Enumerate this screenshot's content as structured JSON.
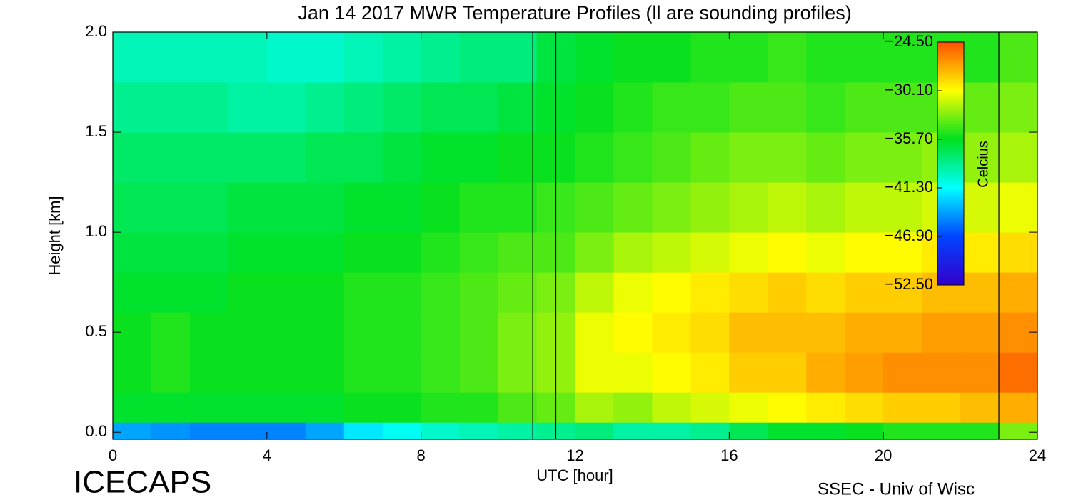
{
  "chart_data": {
    "type": "heatmap",
    "title": "Jan 14 2017 MWR Temperature Profiles (ll are sounding profiles)",
    "xlabel": "UTC [hour]",
    "ylabel": "Height [km]",
    "colorbar_label": "Celcius",
    "footer_left": "ICECAPS",
    "footer_right": "SSEC - Univ of Wisc",
    "xlim": [
      0,
      24
    ],
    "xticks": [
      0,
      4,
      8,
      12,
      16,
      20,
      24
    ],
    "ylim": [
      -0.035,
      2.0
    ],
    "yticks": [
      {
        "value": 0,
        "label": "0.0"
      },
      0.5,
      {
        "value": 1,
        "label": "1.0"
      },
      1.5,
      {
        "value": 2,
        "label": "2.0"
      }
    ],
    "clim": [
      -52.5,
      -24.5
    ],
    "cticks": [
      {
        "value": -24.5,
        "label": "−24.50"
      },
      {
        "value": -30.1,
        "label": "−30.10"
      },
      {
        "value": -35.7,
        "label": "−35.70"
      },
      {
        "value": -41.3,
        "label": "−41.30"
      },
      {
        "value": -46.9,
        "label": "−46.90"
      },
      {
        "value": -52.5,
        "label": "−52.50"
      }
    ],
    "colormap": [
      "#3300cc",
      "#0044ff",
      "#00ffff",
      "#00e020",
      "#ffff00",
      "#ff5000"
    ],
    "sounding_times": [
      10.9,
      11.5,
      23.0
    ],
    "x_bins": [
      0,
      1,
      2,
      3,
      4,
      5,
      6,
      7,
      8,
      9,
      10,
      11,
      12,
      13,
      14,
      15,
      16,
      17,
      18,
      19,
      20,
      21,
      22,
      23,
      24
    ],
    "y_bins": [
      -0.035,
      0.05,
      0.2,
      0.4,
      0.6,
      0.8,
      1.0,
      1.25,
      1.5,
      1.75,
      2.0
    ],
    "values": [
      [
        -44,
        -44.5,
        -45,
        -45,
        -45,
        -44,
        -42,
        -41,
        -40,
        -39.5,
        -39,
        -38.5,
        -38,
        -39,
        -39,
        -38.5,
        -37,
        -36,
        -36,
        -35.5,
        -35,
        -35,
        -35,
        -33
      ],
      [
        -36,
        -36,
        -36,
        -36,
        -36,
        -36,
        -35.5,
        -35.5,
        -35,
        -35,
        -34,
        -33.5,
        -32,
        -32.5,
        -31.5,
        -31,
        -30.5,
        -30,
        -29.5,
        -29,
        -28.5,
        -28.5,
        -28,
        -27.5
      ],
      [
        -35.5,
        -35,
        -35.5,
        -35.5,
        -35.5,
        -35.5,
        -35,
        -35,
        -34.5,
        -34,
        -33,
        -32.5,
        -30.5,
        -30.5,
        -30,
        -29.5,
        -28.5,
        -28.5,
        -27.5,
        -27,
        -26.5,
        -26.5,
        -26.5,
        -25.5
      ],
      [
        -35.5,
        -35,
        -35.5,
        -35.5,
        -35.5,
        -35.5,
        -35,
        -35,
        -34.5,
        -34,
        -33,
        -32.5,
        -30.5,
        -30,
        -29.5,
        -29,
        -28,
        -28,
        -28,
        -27.5,
        -27.5,
        -27,
        -27,
        -26.5
      ],
      [
        -36,
        -36,
        -36,
        -35.5,
        -35.5,
        -35.5,
        -35,
        -35,
        -34.5,
        -34,
        -33.5,
        -33,
        -31.5,
        -30.5,
        -30,
        -29.5,
        -29,
        -28.5,
        -29,
        -28.5,
        -28.5,
        -28,
        -28,
        -27.5
      ],
      [
        -36.5,
        -36.5,
        -36.5,
        -36,
        -36,
        -36,
        -35.5,
        -35.5,
        -35,
        -34.5,
        -34,
        -34,
        -33,
        -32,
        -31.5,
        -31,
        -30.5,
        -30,
        -30.5,
        -30,
        -30,
        -29.5,
        -29.5,
        -29
      ],
      [
        -37,
        -37,
        -37,
        -36.5,
        -36.5,
        -36.5,
        -36,
        -36,
        -35.5,
        -35,
        -35,
        -34.5,
        -34,
        -33.5,
        -33,
        -32.5,
        -32,
        -31.5,
        -32,
        -31.5,
        -31.5,
        -31,
        -31,
        -30.5
      ],
      [
        -37.5,
        -37.5,
        -37.5,
        -37.5,
        -37.5,
        -37,
        -37,
        -36.5,
        -36,
        -36,
        -35.5,
        -35.5,
        -35,
        -34.5,
        -34,
        -33.5,
        -33,
        -33,
        -33.5,
        -33,
        -33,
        -32.5,
        -32.5,
        -32
      ],
      [
        -38.5,
        -38.5,
        -38.5,
        -39,
        -39,
        -38.5,
        -38,
        -37.5,
        -37,
        -37,
        -36.5,
        -36,
        -35.5,
        -35,
        -34.5,
        -34.5,
        -34,
        -34,
        -34.5,
        -34,
        -34,
        -34,
        -33.5,
        -33
      ],
      [
        -39.5,
        -39.5,
        -39.5,
        -39.5,
        -40,
        -40,
        -39.5,
        -39,
        -38.5,
        -38,
        -38,
        -36.5,
        -36,
        -35.5,
        -35.5,
        -35,
        -35,
        -34.5,
        -35,
        -35,
        -35,
        -35,
        -35,
        -34
      ]
    ]
  }
}
